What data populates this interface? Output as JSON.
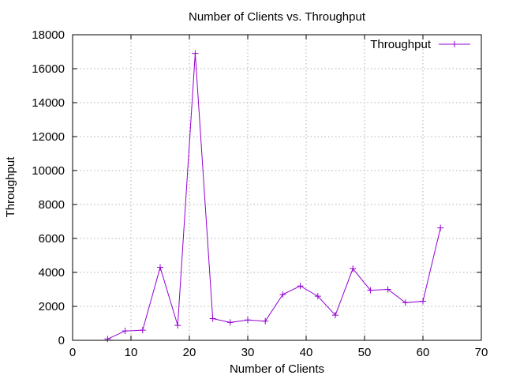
{
  "chart_data": {
    "type": "line",
    "title": "Number of Clients vs. Throughput",
    "xlabel": "Number of Clients",
    "ylabel": "Throughput",
    "xlim": [
      0,
      70
    ],
    "ylim": [
      0,
      18000
    ],
    "xticks": [
      0,
      10,
      20,
      30,
      40,
      50,
      60,
      70
    ],
    "yticks": [
      0,
      2000,
      4000,
      6000,
      8000,
      10000,
      12000,
      14000,
      16000,
      18000
    ],
    "grid": true,
    "legend_position": "top-right",
    "series": [
      {
        "name": "Throughput",
        "color": "#9400d3",
        "marker": "plus",
        "x": [
          6,
          9,
          12,
          15,
          18,
          21,
          24,
          27,
          30,
          33,
          36,
          39,
          42,
          45,
          48,
          51,
          54,
          57,
          60,
          63
        ],
        "y": [
          80,
          550,
          600,
          4300,
          880,
          16900,
          1280,
          1050,
          1200,
          1130,
          2700,
          3200,
          2600,
          1480,
          4220,
          2950,
          3000,
          2220,
          2300,
          6620
        ]
      }
    ]
  }
}
